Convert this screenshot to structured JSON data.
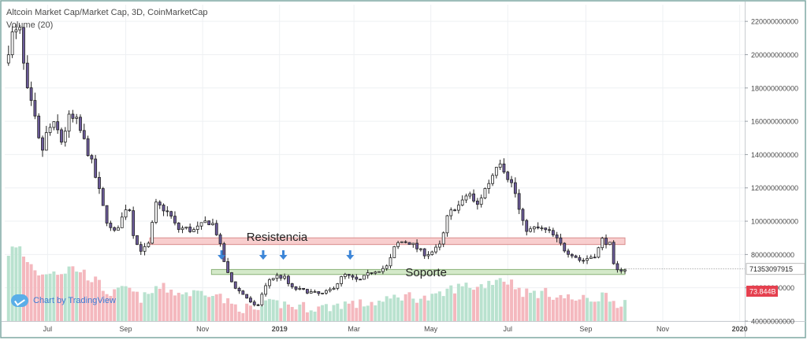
{
  "header": {
    "title": "Altcoin Market Cap/Market Cap, 3D, CoinMarketCap",
    "volume_label": "Volume (20)"
  },
  "brand": {
    "label": "Chart by TradingView",
    "icon": "tradingview-logo-icon"
  },
  "colors": {
    "up": "#ffffff",
    "down": "#6c5b9b",
    "wick": "#222222",
    "volume_up": "#b9e2cf",
    "volume_down": "#f4b8be",
    "resistance_fill": "#f7c6c6",
    "resistance_border": "#d98c8c",
    "support_fill": "#cde5bf",
    "support_border": "#8cb37a",
    "arrow": "#3d86d8",
    "last_label": "#e5404f"
  },
  "chart_data": {
    "type": "candlestick",
    "title": "Altcoin Market Cap/Market Cap, 3D, CoinMarketCap",
    "xlabel": "",
    "ylabel": "",
    "ylim": [
      40000000000,
      230000000000
    ],
    "y_ticks": [
      {
        "value": 40000000000,
        "label": "40000000000"
      },
      {
        "value": 60000000000,
        "label": "60000000000"
      },
      {
        "value": 80000000000,
        "label": "80000000000"
      },
      {
        "value": 100000000000,
        "label": "100000000000"
      },
      {
        "value": 120000000000,
        "label": "120000000000"
      },
      {
        "value": 140000000000,
        "label": "140000000000"
      },
      {
        "value": 160000000000,
        "label": "160000000000"
      },
      {
        "value": 180000000000,
        "label": "180000000000"
      },
      {
        "value": 200000000000,
        "label": "200000000000"
      },
      {
        "value": 220000000000,
        "label": "220000000000"
      }
    ],
    "x_range": [
      "2018-05-28",
      "2020-01-05"
    ],
    "x_ticks": [
      {
        "date": "2018-07-01",
        "label": "Jul",
        "bold": false
      },
      {
        "date": "2018-09-01",
        "label": "Sep",
        "bold": false
      },
      {
        "date": "2018-11-01",
        "label": "Nov",
        "bold": false
      },
      {
        "date": "2019-01-01",
        "label": "2019",
        "bold": true
      },
      {
        "date": "2019-03-01",
        "label": "Mar",
        "bold": false
      },
      {
        "date": "2019-05-01",
        "label": "May",
        "bold": false
      },
      {
        "date": "2019-07-01",
        "label": "Jul",
        "bold": false
      },
      {
        "date": "2019-09-01",
        "label": "Sep",
        "bold": false
      },
      {
        "date": "2019-11-01",
        "label": "Nov",
        "bold": false
      },
      {
        "date": "2020-01-01",
        "label": "2020",
        "bold": true
      }
    ],
    "price_path": [
      [
        "2018-05-28",
        195000000000
      ],
      [
        "2018-06-03",
        212000000000
      ],
      [
        "2018-06-09",
        214000000000
      ],
      [
        "2018-06-14",
        180000000000
      ],
      [
        "2018-06-20",
        165000000000
      ],
      [
        "2018-06-26",
        140000000000
      ],
      [
        "2018-07-01",
        155000000000
      ],
      [
        "2018-07-07",
        158000000000
      ],
      [
        "2018-07-12",
        148000000000
      ],
      [
        "2018-07-18",
        162000000000
      ],
      [
        "2018-07-24",
        160000000000
      ],
      [
        "2018-07-30",
        148000000000
      ],
      [
        "2018-08-05",
        135000000000
      ],
      [
        "2018-08-11",
        118000000000
      ],
      [
        "2018-08-16",
        102000000000
      ],
      [
        "2018-08-22",
        92000000000
      ],
      [
        "2018-08-28",
        100000000000
      ],
      [
        "2018-09-03",
        112000000000
      ],
      [
        "2018-09-08",
        88000000000
      ],
      [
        "2018-09-14",
        82000000000
      ],
      [
        "2018-09-19",
        86000000000
      ],
      [
        "2018-09-25",
        110000000000
      ],
      [
        "2018-09-30",
        108000000000
      ],
      [
        "2018-10-06",
        104000000000
      ],
      [
        "2018-10-12",
        95000000000
      ],
      [
        "2018-10-18",
        96000000000
      ],
      [
        "2018-10-24",
        94000000000
      ],
      [
        "2018-10-30",
        97000000000
      ],
      [
        "2018-11-04",
        100000000000
      ],
      [
        "2018-11-10",
        98000000000
      ],
      [
        "2018-11-15",
        85000000000
      ],
      [
        "2018-11-20",
        70000000000
      ],
      [
        "2018-11-25",
        62000000000
      ],
      [
        "2018-11-30",
        58000000000
      ],
      [
        "2018-12-05",
        55000000000
      ],
      [
        "2018-12-10",
        50000000000
      ],
      [
        "2018-12-14",
        48000000000
      ],
      [
        "2018-12-19",
        58000000000
      ],
      [
        "2018-12-24",
        65000000000
      ],
      [
        "2018-12-30",
        67000000000
      ],
      [
        "2019-01-05",
        66000000000
      ],
      [
        "2019-01-10",
        60000000000
      ],
      [
        "2019-01-16",
        59000000000
      ],
      [
        "2019-01-22",
        58000000000
      ],
      [
        "2019-01-28",
        57000000000
      ],
      [
        "2019-02-03",
        56000000000
      ],
      [
        "2019-02-09",
        58000000000
      ],
      [
        "2019-02-15",
        62000000000
      ],
      [
        "2019-02-21",
        68000000000
      ],
      [
        "2019-02-27",
        66000000000
      ],
      [
        "2019-03-05",
        64000000000
      ],
      [
        "2019-03-10",
        67000000000
      ],
      [
        "2019-03-16",
        70000000000
      ],
      [
        "2019-03-22",
        71000000000
      ],
      [
        "2019-03-28",
        73000000000
      ],
      [
        "2019-04-03",
        86000000000
      ],
      [
        "2019-04-09",
        88000000000
      ],
      [
        "2019-04-15",
        87000000000
      ],
      [
        "2019-04-21",
        83000000000
      ],
      [
        "2019-04-27",
        80000000000
      ],
      [
        "2019-05-03",
        82000000000
      ],
      [
        "2019-05-09",
        86000000000
      ],
      [
        "2019-05-14",
        102000000000
      ],
      [
        "2019-05-19",
        108000000000
      ],
      [
        "2019-05-25",
        110000000000
      ],
      [
        "2019-05-31",
        118000000000
      ],
      [
        "2019-06-06",
        108000000000
      ],
      [
        "2019-06-12",
        118000000000
      ],
      [
        "2019-06-18",
        126000000000
      ],
      [
        "2019-06-24",
        138000000000
      ],
      [
        "2019-06-30",
        128000000000
      ],
      [
        "2019-07-06",
        120000000000
      ],
      [
        "2019-07-12",
        100000000000
      ],
      [
        "2019-07-17",
        94000000000
      ],
      [
        "2019-07-23",
        96000000000
      ],
      [
        "2019-07-29",
        95000000000
      ],
      [
        "2019-08-04",
        93000000000
      ],
      [
        "2019-08-10",
        88000000000
      ],
      [
        "2019-08-16",
        82000000000
      ],
      [
        "2019-08-22",
        80000000000
      ],
      [
        "2019-08-28",
        76000000000
      ],
      [
        "2019-09-03",
        78000000000
      ],
      [
        "2019-09-09",
        80000000000
      ],
      [
        "2019-09-14",
        89000000000
      ],
      [
        "2019-09-20",
        86000000000
      ],
      [
        "2019-09-24",
        69000000000
      ],
      [
        "2019-09-28",
        71000000000
      ],
      [
        "2019-10-03",
        71353097915
      ]
    ],
    "levels": [
      {
        "name": "Resistencia",
        "label": "Resistencia",
        "y_from": 86000000000,
        "y_to": 90000000000,
        "x_from": "2018-09-20",
        "x_to": "2019-10-02"
      },
      {
        "name": "Soporte",
        "label": "Soporte",
        "y_from": 68000000000,
        "y_to": 71000000000,
        "x_from": "2018-11-08",
        "x_to": "2019-10-02"
      }
    ],
    "arrows": [
      "2018-11-16",
      "2018-12-19",
      "2019-01-04",
      "2019-02-26"
    ],
    "last_value": {
      "value": 71353097915,
      "label": "71353097915"
    },
    "volume": {
      "label": "Volume (20)",
      "last_label": "73.844B",
      "last_value": 73844000000
    }
  }
}
